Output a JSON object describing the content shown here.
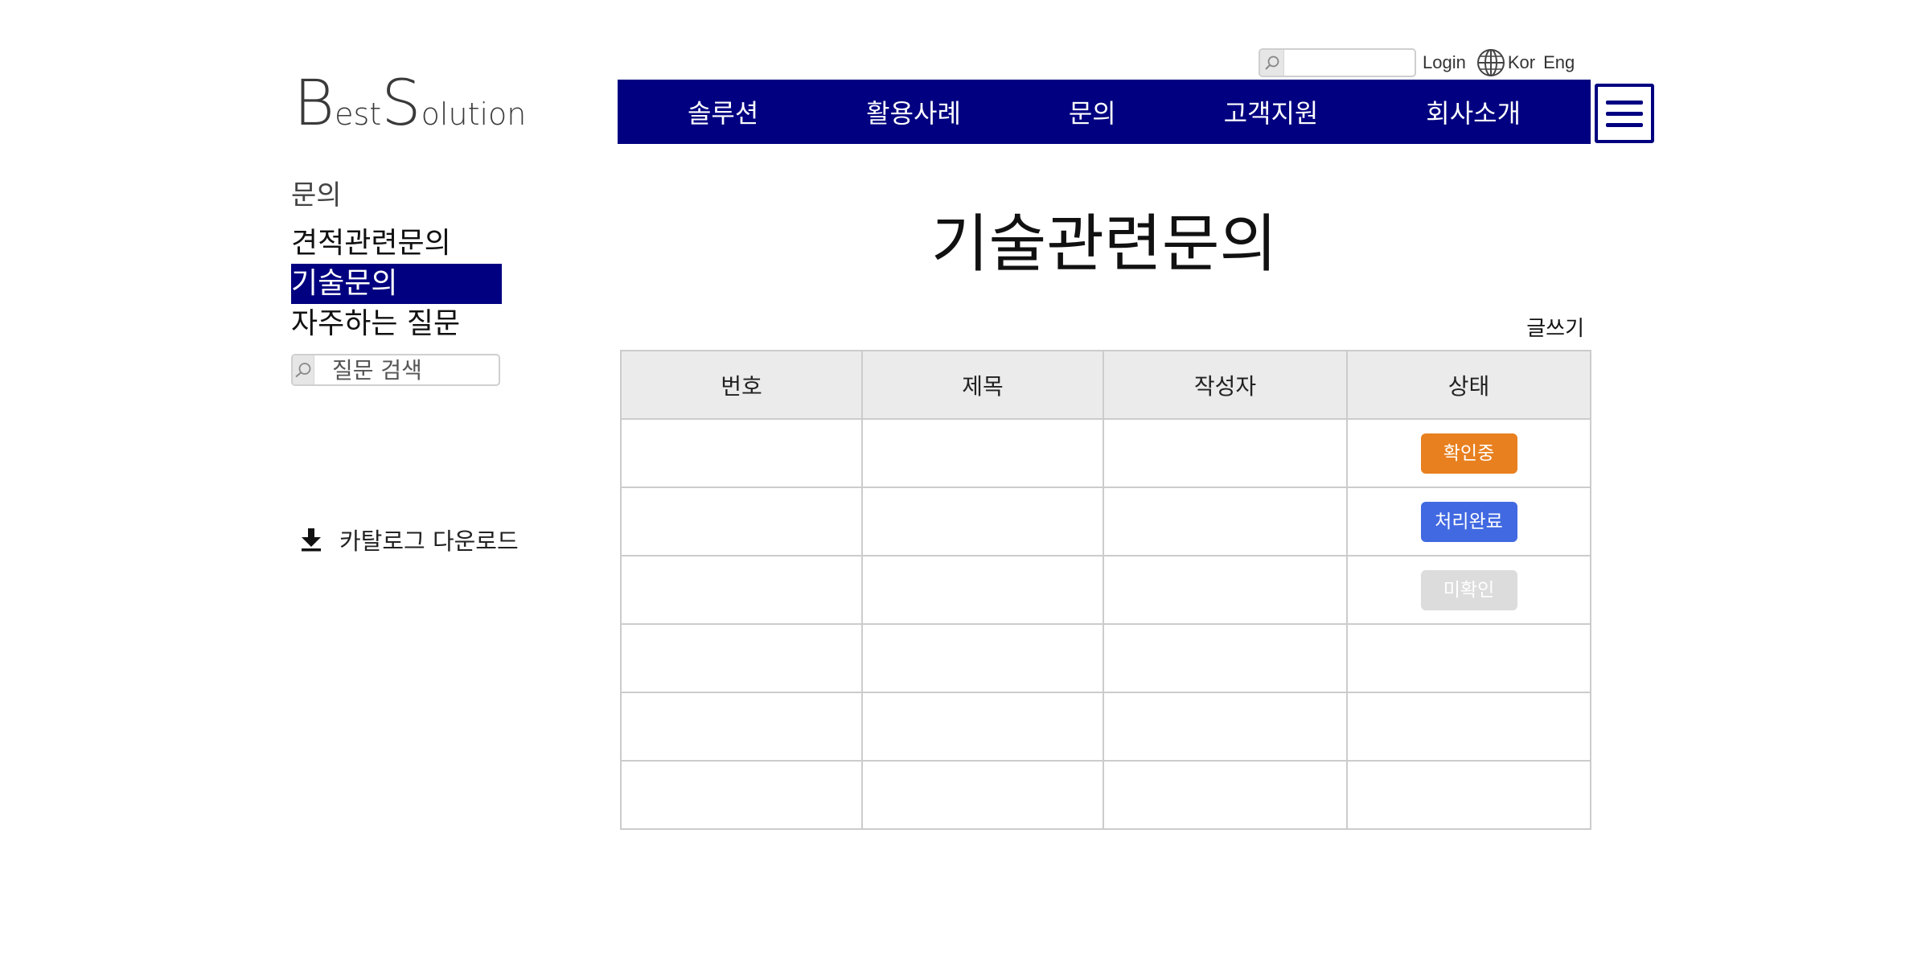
{
  "utility": {
    "search_placeholder": "",
    "login_label": "Login",
    "lang_kor": "Kor",
    "lang_eng": "Eng"
  },
  "logo": {
    "b": "B",
    "est": "est",
    "s": "S",
    "olution": "olution"
  },
  "nav": {
    "items": [
      {
        "label": "솔루션"
      },
      {
        "label": "활용사례"
      },
      {
        "label": "문의"
      },
      {
        "label": "고객지원"
      },
      {
        "label": "회사소개"
      }
    ]
  },
  "sidebar": {
    "section_title": "문의",
    "items": [
      {
        "label": "견적관련문의"
      },
      {
        "label": "기술문의"
      },
      {
        "label": "자주하는 질문"
      }
    ],
    "search_placeholder": "질문 검색",
    "catalog_label": "카탈로그 다운로드"
  },
  "content": {
    "title": "기술관련문의",
    "write_label": "글쓰기",
    "table": {
      "headers": [
        "번호",
        "제목",
        "작성자",
        "상태"
      ],
      "rows": [
        {
          "number": "",
          "title": "",
          "author": "",
          "status": "확인중"
        },
        {
          "number": "",
          "title": "",
          "author": "",
          "status": "처리완료"
        },
        {
          "number": "",
          "title": "",
          "author": "",
          "status": "미확인"
        },
        {
          "number": "",
          "title": "",
          "author": "",
          "status": ""
        },
        {
          "number": "",
          "title": "",
          "author": "",
          "status": ""
        },
        {
          "number": "",
          "title": "",
          "author": "",
          "status": ""
        }
      ]
    }
  },
  "colors": {
    "brand_navy": "#000080",
    "status_checking": "#e8801f",
    "status_done": "#4169e1",
    "status_unchecked": "#dcdcdc",
    "header_bg": "#ebebeb"
  },
  "icons": {
    "search": "search-icon",
    "globe": "globe-icon",
    "menu": "hamburger-menu-icon",
    "download": "download-icon"
  }
}
